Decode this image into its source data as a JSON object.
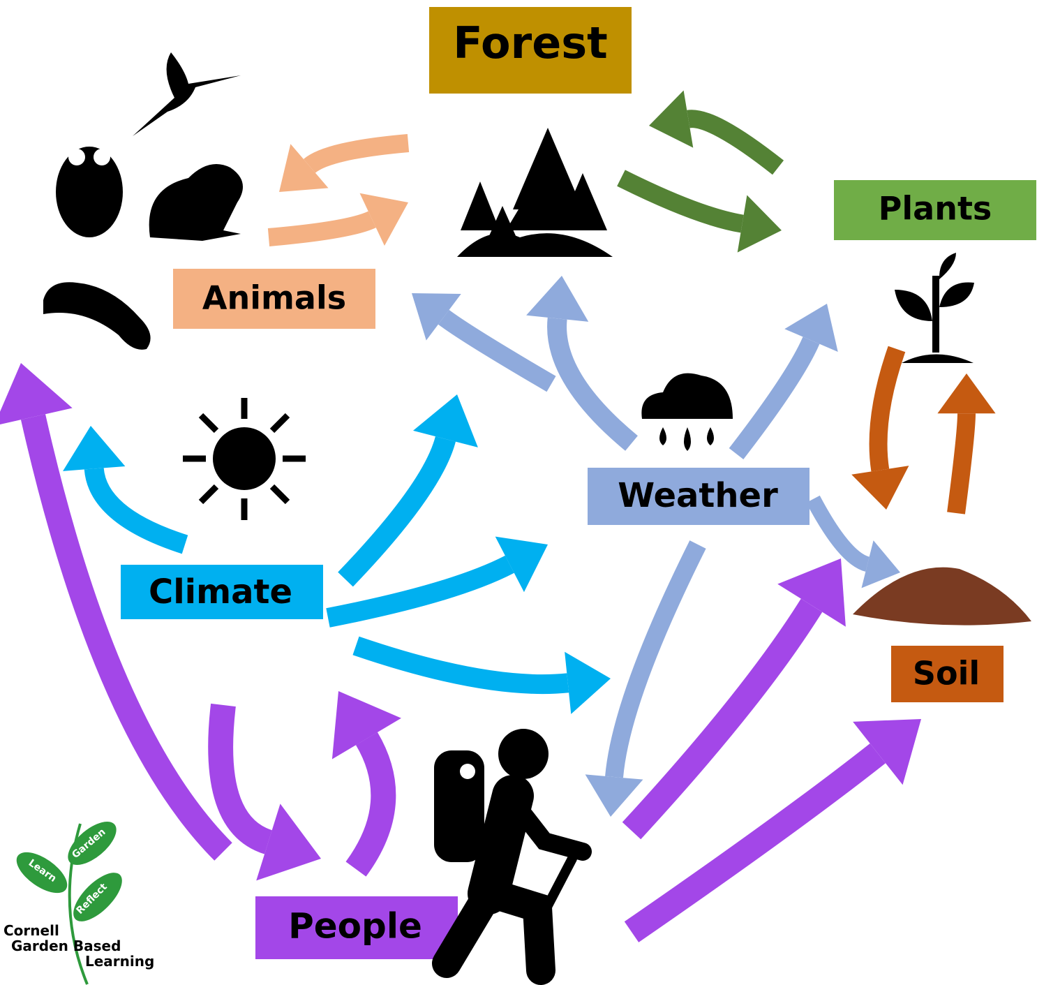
{
  "nodes": [
    {
      "label": "Forest"
    },
    {
      "label": "Animals"
    },
    {
      "label": "Plants"
    },
    {
      "label": "Weather"
    },
    {
      "label": "Climate"
    },
    {
      "label": "Soil"
    },
    {
      "label": "People"
    }
  ],
  "logo": {
    "leaves": [
      "Learn",
      "Garden",
      "Reflect"
    ],
    "lines": [
      "Cornell",
      "Garden Based",
      "Learning"
    ]
  }
}
